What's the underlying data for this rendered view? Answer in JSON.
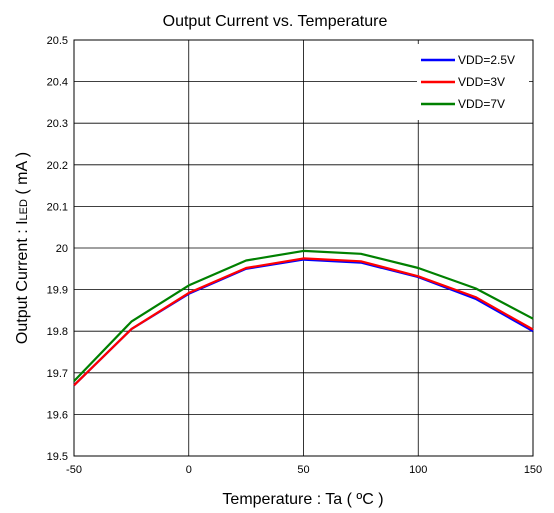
{
  "chart_data": {
    "type": "line",
    "title": "Output Current vs. Temperature",
    "xlabel": "Temperature : Ta ( ºC )",
    "ylabel": "Output Current : I",
    "ylabel_sub": "LED",
    "ylabel_unit": " ( mA )",
    "xlim": [
      -50,
      150
    ],
    "ylim": [
      19.5,
      20.5
    ],
    "xticks": [
      -50,
      0,
      50,
      100,
      150
    ],
    "yticks": [
      19.5,
      19.6,
      19.7,
      19.8,
      19.9,
      20.0,
      20.1,
      20.2,
      20.3,
      20.4,
      20.5
    ],
    "xtick_labels": [
      "-50",
      "0",
      "50",
      "100",
      "150"
    ],
    "ytick_labels": [
      "19.5",
      "19.6",
      "19.7",
      "19.8",
      "19.9",
      "20",
      "20.1",
      "20.2",
      "20.3",
      "20.4",
      "20.5"
    ],
    "grid": true,
    "legend_position": "top-right",
    "series": [
      {
        "name": "VDD=2.5V",
        "color": "#0000ff",
        "x": [
          -50,
          -25,
          0,
          25,
          50,
          75,
          100,
          125,
          150
        ],
        "y": [
          19.67,
          19.805,
          19.89,
          19.95,
          19.972,
          19.965,
          19.93,
          19.878,
          19.8
        ]
      },
      {
        "name": "VDD=3V",
        "color": "#ff0000",
        "x": [
          -50,
          -25,
          0,
          25,
          50,
          75,
          100,
          125,
          150
        ],
        "y": [
          19.67,
          19.805,
          19.892,
          19.952,
          19.975,
          19.968,
          19.932,
          19.882,
          19.804
        ]
      },
      {
        "name": "VDD=7V",
        "color": "#008000",
        "x": [
          -50,
          -25,
          0,
          25,
          50,
          75,
          100,
          125,
          150
        ],
        "y": [
          19.68,
          19.823,
          19.91,
          19.97,
          19.993,
          19.986,
          19.952,
          19.903,
          19.83
        ]
      }
    ]
  }
}
